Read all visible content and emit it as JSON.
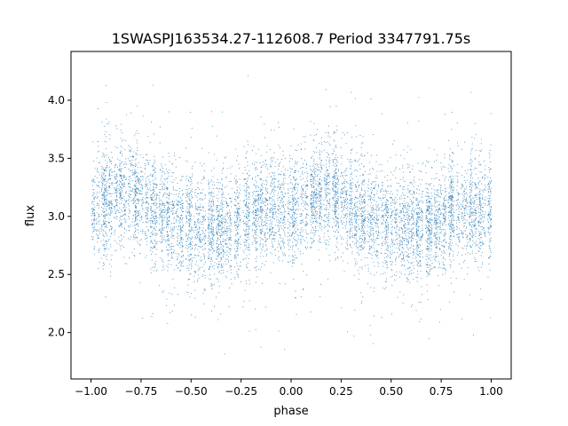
{
  "chart_data": {
    "type": "scatter",
    "title": "1SWASPJ163534.27-112608.7 Period 3347791.75s",
    "xlabel": "phase",
    "ylabel": "flux",
    "xlim": [
      -1.1,
      1.1
    ],
    "ylim": [
      1.6,
      4.42
    ],
    "x_ticks": [
      -1.0,
      -0.75,
      -0.5,
      -0.25,
      0.0,
      0.25,
      0.5,
      0.75,
      1.0
    ],
    "x_tick_labels": [
      "−1.00",
      "−0.75",
      "−0.50",
      "−0.25",
      "0.00",
      "0.25",
      "0.50",
      "0.75",
      "1.00"
    ],
    "y_ticks": [
      2.0,
      2.5,
      3.0,
      3.5,
      4.0
    ],
    "y_tick_labels": [
      "2.0",
      "2.5",
      "3.0",
      "3.5",
      "4.0"
    ],
    "grid": false,
    "legend": "none",
    "point_color": "#1f77b4",
    "phase_range": [
      -1.0,
      1.0
    ],
    "profile": [
      {
        "phase": -1.0,
        "flux": 3.05
      },
      {
        "phase": -0.9,
        "flux": 3.15
      },
      {
        "phase": -0.8,
        "flux": 3.22
      },
      {
        "phase": -0.7,
        "flux": 3.08
      },
      {
        "phase": -0.6,
        "flux": 2.98
      },
      {
        "phase": -0.5,
        "flux": 2.92
      },
      {
        "phase": -0.4,
        "flux": 2.9
      },
      {
        "phase": -0.3,
        "flux": 2.92
      },
      {
        "phase": -0.2,
        "flux": 3.02
      },
      {
        "phase": -0.1,
        "flux": 3.08
      },
      {
        "phase": 0.0,
        "flux": 3.05
      },
      {
        "phase": 0.1,
        "flux": 3.15
      },
      {
        "phase": 0.2,
        "flux": 3.22
      },
      {
        "phase": 0.3,
        "flux": 3.08
      },
      {
        "phase": 0.4,
        "flux": 2.98
      },
      {
        "phase": 0.5,
        "flux": 2.92
      },
      {
        "phase": 0.6,
        "flux": 2.9
      },
      {
        "phase": 0.7,
        "flux": 2.92
      },
      {
        "phase": 0.8,
        "flux": 3.02
      },
      {
        "phase": 0.9,
        "flux": 3.08
      },
      {
        "phase": 1.0,
        "flux": 3.05
      }
    ],
    "scatter_sigma": 0.22,
    "flux_extent": [
      1.7,
      4.3
    ]
  }
}
